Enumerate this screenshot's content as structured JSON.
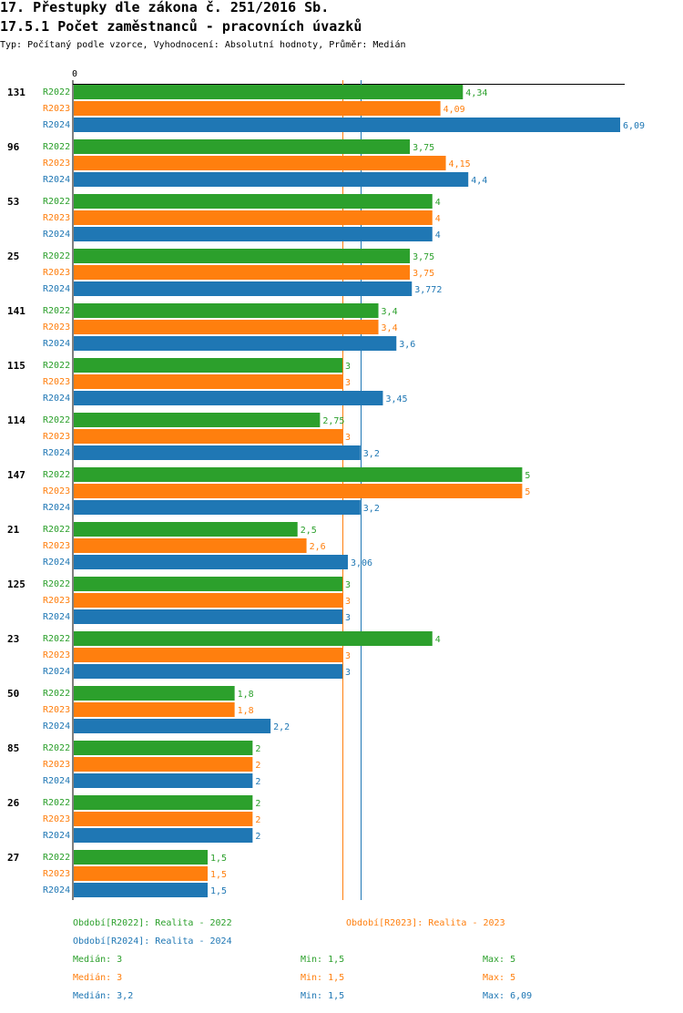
{
  "header": {
    "title": "17. Přestupky dle zákona č. 251/2016 Sb.",
    "subtitle": "17.5.1 Počet zaměstnanců - pracovních úvazků",
    "description": "Typ: Počítaný podle vzorce, Vyhodnocení: Absolutní hodnoty, Průměr: Medián"
  },
  "colors": {
    "R2022": "#2ca02c",
    "R2023": "#ff7f0e",
    "R2024": "#1f77b4"
  },
  "chart_data": {
    "type": "bar",
    "orientation": "horizontal",
    "axis_zero_label": "0",
    "xlim": [
      0,
      6.09
    ],
    "series_names": [
      "R2022",
      "R2023",
      "R2024"
    ],
    "categories": [
      "131",
      "96",
      "53",
      "25",
      "141",
      "115",
      "114",
      "147",
      "21",
      "125",
      "23",
      "50",
      "85",
      "26",
      "27"
    ],
    "series": [
      {
        "name": "R2022",
        "values": [
          4.34,
          3.75,
          4,
          3.75,
          3.4,
          3,
          2.75,
          5,
          2.5,
          3,
          4,
          1.8,
          2,
          2,
          1.5
        ],
        "labels": [
          "4,34",
          "3,75",
          "4",
          "3,75",
          "3,4",
          "3",
          "2,75",
          "5",
          "2,5",
          "3",
          "4",
          "1,8",
          "2",
          "2",
          "1,5"
        ]
      },
      {
        "name": "R2023",
        "values": [
          4.09,
          4.15,
          4,
          3.75,
          3.4,
          3,
          3,
          5,
          2.6,
          3,
          3,
          1.8,
          2,
          2,
          1.5
        ],
        "labels": [
          "4,09",
          "4,15",
          "4",
          "3,75",
          "3,4",
          "3",
          "3",
          "5",
          "2,6",
          "3",
          "3",
          "1,8",
          "2",
          "2",
          "1,5"
        ]
      },
      {
        "name": "R2024",
        "values": [
          6.09,
          4.4,
          4,
          3.772,
          3.6,
          3.45,
          3.2,
          3.2,
          3.06,
          3,
          3,
          2.2,
          2,
          2,
          1.5
        ],
        "labels": [
          "6,09",
          "4,4",
          "4",
          "3,772",
          "3,6",
          "3,45",
          "3,2",
          "3,2",
          "3,06",
          "3",
          "3",
          "2,2",
          "2",
          "2",
          "1,5"
        ]
      }
    ],
    "median_lines": [
      {
        "series": "R2022",
        "value": 3
      },
      {
        "series": "R2023",
        "value": 3
      },
      {
        "series": "R2024",
        "value": 3.2
      }
    ]
  },
  "legend": {
    "periods": [
      "Období[R2022]: Realita - 2022",
      "Období[R2023]: Realita - 2023",
      "Období[R2024]: Realita - 2024"
    ],
    "stats": [
      {
        "median": "Medián: 3",
        "min": "Min: 1,5",
        "max": "Max: 5"
      },
      {
        "median": "Medián: 3",
        "min": "Min: 1,5",
        "max": "Max: 5"
      },
      {
        "median": "Medián: 3,2",
        "min": "Min: 1,5",
        "max": "Max: 6,09"
      }
    ]
  }
}
